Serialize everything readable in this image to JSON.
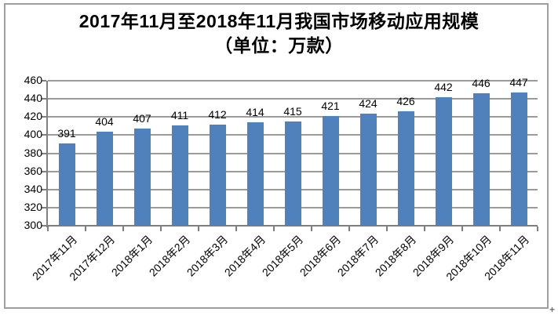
{
  "chart_data": {
    "type": "bar",
    "title_line1": "2017年11月至2018年11月我国市场移动应用规模",
    "title_line2": "（单位：万款）",
    "categories": [
      "2017年11月",
      "2017年12月",
      "2018年1月",
      "2018年2月",
      "2018年3月",
      "2018年4月",
      "2018年5月",
      "2018年6月",
      "2018年7月",
      "2018年8月",
      "2018年9月",
      "2018年10月",
      "2018年11月"
    ],
    "values": [
      391,
      404,
      407,
      411,
      412,
      414,
      415,
      421,
      424,
      426,
      442,
      446,
      447
    ],
    "ylim": [
      300,
      460
    ],
    "yticks": [
      300,
      320,
      340,
      360,
      380,
      400,
      420,
      440,
      460
    ],
    "xlabel": "",
    "ylabel": "",
    "grid": true,
    "legend": "none",
    "data_labels": true,
    "bar_color": "#4f81bd",
    "gridline_color": "#9b9b9b",
    "axis_color": "#7f7f7f",
    "frame_border_color": "#9e9e9e",
    "text_color": "#000000"
  },
  "decorations": {
    "corner_mark": "+"
  }
}
